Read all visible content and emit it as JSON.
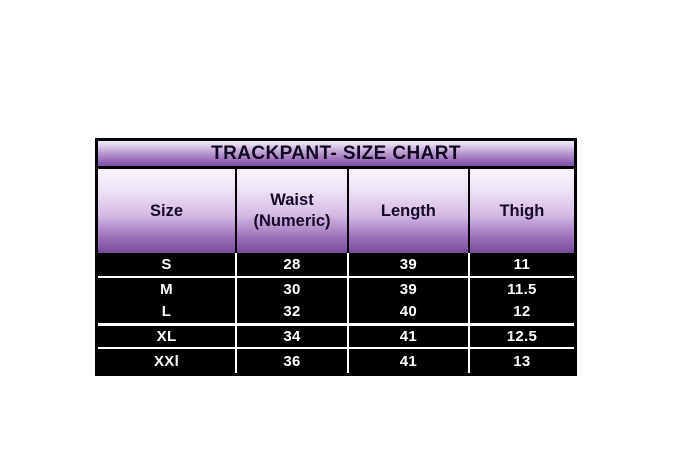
{
  "title": "TRACKPANT- SIZE CHART",
  "table": {
    "columns": [
      "Size",
      "Waist (Numeric)",
      "Length",
      "Thigh"
    ],
    "rows": [
      [
        "S",
        "28",
        "39",
        "11"
      ],
      [
        "M",
        "30",
        "39",
        "11.5"
      ],
      [
        "L",
        "32",
        "40",
        "12"
      ],
      [
        "XL",
        "34",
        "41",
        "12.5"
      ],
      [
        "XXl",
        "36",
        "41",
        "13"
      ]
    ]
  },
  "colors": {
    "page_background": "#ffffff",
    "table_border": "#000000",
    "purple_gradient_light": "#f6f0fa",
    "purple_gradient_dark": "#7d52a2",
    "data_row_background": "#000000",
    "data_row_text": "#ffffff",
    "row_divider": "#ffffff",
    "title_text": "#0f0720",
    "header_text": "#150a26"
  },
  "chart_data": {
    "type": "table",
    "title": "TRACKPANT- SIZE CHART",
    "columns": [
      "Size",
      "Waist (Numeric)",
      "Length",
      "Thigh"
    ],
    "rows": [
      [
        "S",
        28,
        39,
        11
      ],
      [
        "M",
        30,
        39,
        11.5
      ],
      [
        "L",
        32,
        40,
        12
      ],
      [
        "XL",
        34,
        41,
        12.5
      ],
      [
        "XXl",
        36,
        41,
        13
      ]
    ]
  }
}
